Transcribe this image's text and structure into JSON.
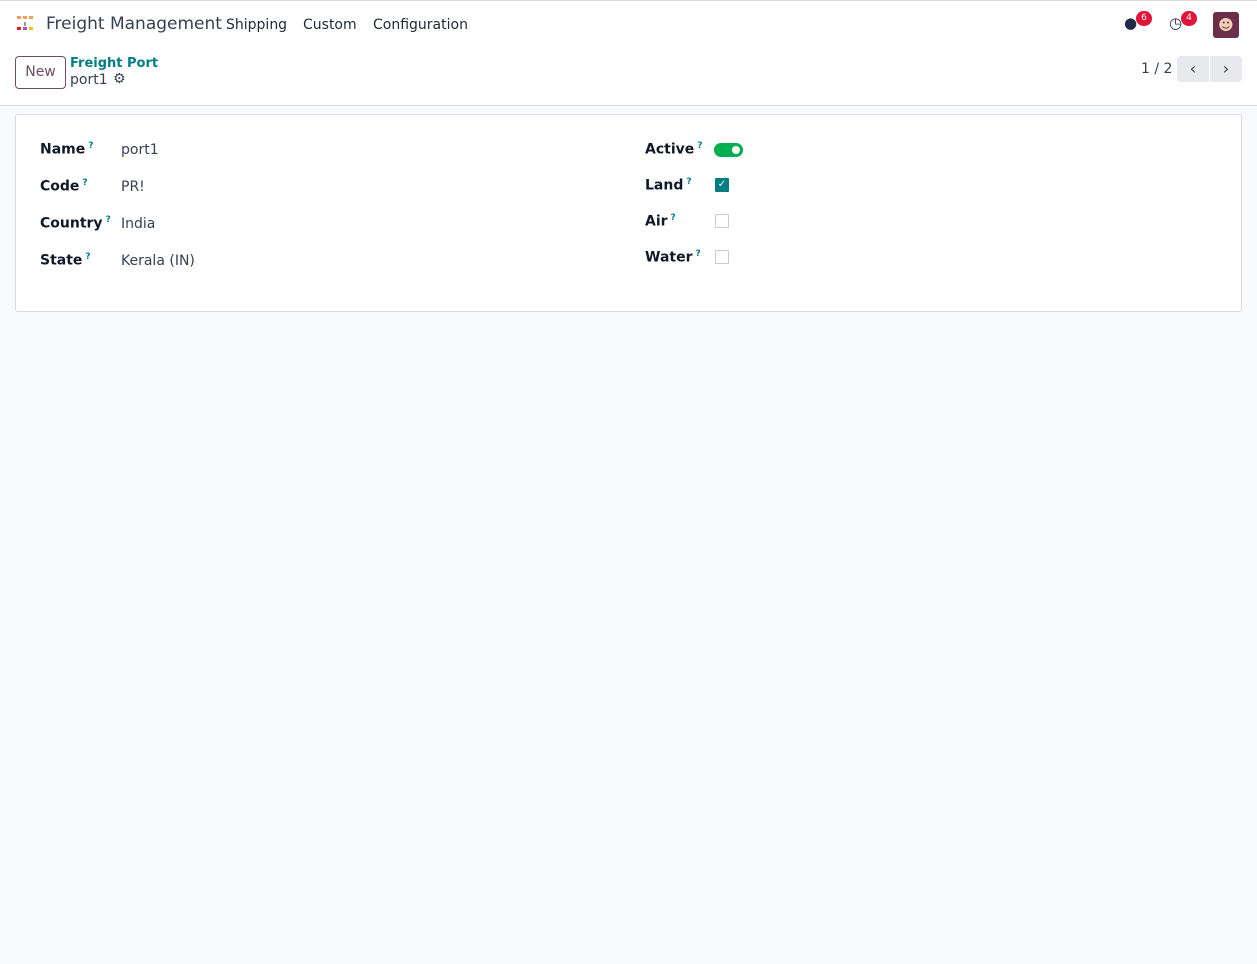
{
  "navbar": {
    "app_name": "Freight Management",
    "menus": [
      "Shipping",
      "Custom",
      "Configuration"
    ],
    "messages_count": "6",
    "activities_count": "4"
  },
  "control_panel": {
    "new_label": "New",
    "breadcrumb_parent": "Freight Port",
    "breadcrumb_current": "port1",
    "pager": "1 / 2"
  },
  "form": {
    "left": [
      {
        "label": "Name",
        "value": "port1"
      },
      {
        "label": "Code",
        "value": "PR!"
      },
      {
        "label": "Country",
        "value": "India"
      },
      {
        "label": "State",
        "value": "Kerala (IN)"
      }
    ],
    "right": [
      {
        "label": "Active",
        "type": "toggle",
        "checked": true
      },
      {
        "label": "Land",
        "type": "checkbox",
        "checked": true
      },
      {
        "label": "Air",
        "type": "checkbox",
        "checked": false
      },
      {
        "label": "Water",
        "type": "checkbox",
        "checked": false
      }
    ],
    "help_marker": "?"
  },
  "colors": {
    "accent": "#017e84",
    "brand": "#714b67",
    "toggle_on": "#00b050",
    "badge": "#e2143a"
  }
}
